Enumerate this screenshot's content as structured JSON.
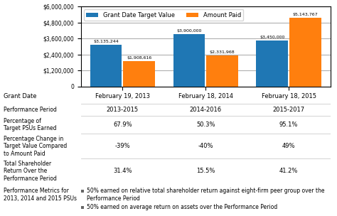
{
  "chart_data": {
    "type": "bar",
    "categories": [
      "February 19, 2013",
      "February 18, 2014",
      "February 18, 2015"
    ],
    "xlabel": "Grant Date",
    "series": [
      {
        "name": "Grant Date Target Value",
        "values": [
          3135244,
          3900000,
          3450000
        ],
        "value_labels": [
          "$3,135,244",
          "$3,900,000",
          "$3,450,000"
        ]
      },
      {
        "name": "Amount Paid",
        "values": [
          1908616,
          2331968,
          5143767
        ],
        "value_labels": [
          "$1,908,616",
          "$2,331,968",
          "$5,143,767"
        ]
      }
    ],
    "ylim": [
      0,
      6000000
    ],
    "yticks": [
      0,
      {
        "value": 1200000,
        "label": "$1,200,000"
      },
      {
        "value": 2400000,
        "label": "$2,400,000"
      },
      {
        "value": 3600000,
        "label": "$3,600,000"
      },
      {
        "value": 4800000,
        "label": "$4,800,000"
      },
      {
        "value": 6000000,
        "label": "$6,000,000"
      }
    ],
    "grid": true,
    "legend": "upper left",
    "data_labels": true,
    "table": {
      "row_labels": [
        "Performance Period",
        "Percentage of\nTarget PSUs Earned",
        "Percentage Change in\nTarget Value Compared\nto Amount Paid",
        "Total Shareholder\nReturn Over the\nPerformance Period"
      ],
      "cells": [
        [
          "2013-2015",
          "2014-2016",
          "2015-2017"
        ],
        [
          "67.9%",
          "50.3%",
          "95.1%"
        ],
        [
          "-39%",
          "-40%",
          "49%"
        ],
        [
          "31.4%",
          "15.5%",
          "41.2%"
        ]
      ]
    },
    "footnote_title": "Performance Metrics for\n2013, 2014 and 2015 PSUs",
    "footnotes": [
      "50% earned on relative total shareholder return against eight-firm peer group over the Performance Period",
      "50% earned on average return on assets over the Performance Period"
    ]
  }
}
